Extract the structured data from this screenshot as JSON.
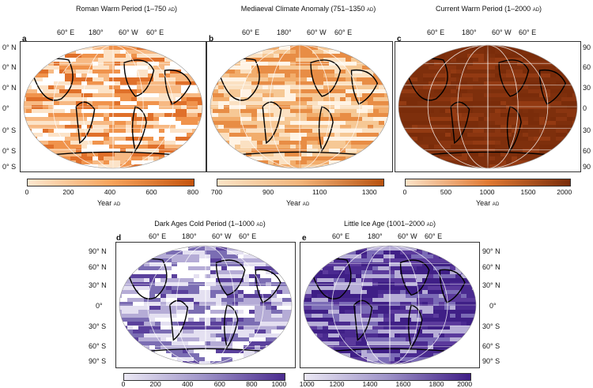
{
  "panels": [
    {
      "id": "a",
      "title": "Roman Warm Period (1–750",
      "title_unit": "AD",
      "title_close": ")",
      "colorbar": {
        "ticks": [
          "0",
          "200",
          "400",
          "600",
          "800"
        ],
        "label": "Year",
        "unit": "AD",
        "colors": [
          "#fde7cf",
          "#f8a45c",
          "#c4530d"
        ]
      },
      "lon_labels": [
        "60° E",
        "180°",
        "60° W",
        "60° E"
      ],
      "lat_labels": [
        "0° N",
        "0° N",
        "0° N",
        "0°",
        "0° S",
        "0° S",
        "0° S"
      ],
      "palette": "orange"
    },
    {
      "id": "b",
      "title": "Mediaeval Climate Anomaly (751–1350",
      "title_unit": "AD",
      "title_close": ")",
      "colorbar": {
        "ticks": [
          "700",
          "900",
          "1100",
          "1300"
        ],
        "label": "Year",
        "unit": "AD",
        "colors": [
          "#fbe3c6",
          "#f3b47a",
          "#b8520f"
        ]
      },
      "lon_labels": [
        "60° E",
        "180°",
        "60° W",
        "60° E"
      ],
      "palette": "peach"
    },
    {
      "id": "c",
      "title": "Current Warm Period (1–2000",
      "title_unit": "AD",
      "title_close": ")",
      "colorbar": {
        "ticks": [
          "0",
          "500",
          "1000",
          "1500",
          "2000"
        ],
        "label": "Year",
        "unit": "AD",
        "colors": [
          "#fde3c8",
          "#e07a34",
          "#7a2c0a"
        ]
      },
      "lon_labels": [
        "60° E",
        "180°",
        "60° W",
        "60° E"
      ],
      "lat_labels": [
        "90",
        "60",
        "30",
        "0",
        "30",
        "60",
        "90"
      ],
      "palette": "brown"
    },
    {
      "id": "d",
      "title": "Dark Ages Cold Period (1–1000",
      "title_unit": "AD",
      "title_close": ")",
      "colorbar": {
        "ticks": [
          "0",
          "200",
          "400",
          "600",
          "800",
          "1000"
        ],
        "colors": [
          "#ebe8f4",
          "#9e93c8",
          "#4b2c8f"
        ]
      },
      "lon_labels": [
        "60° E",
        "180°",
        "60° W",
        "60° E"
      ],
      "lat_labels": [
        "90° N",
        "60° N",
        "30° N",
        "0°",
        "30° S",
        "60° S",
        "90° S"
      ],
      "palette": "lavender"
    },
    {
      "id": "e",
      "title": "Little Ice Age (1001–2000",
      "title_unit": "AD",
      "title_close": ")",
      "colorbar": {
        "ticks": [
          "1000",
          "1200",
          "1400",
          "1600",
          "1800",
          "2000"
        ],
        "colors": [
          "#ebe8f4",
          "#9e93c8",
          "#3f1d86"
        ]
      },
      "lon_labels": [
        "60° E",
        "180°",
        "60° W",
        "60° E"
      ],
      "lat_labels": [
        "90° N",
        "60° N",
        "30° N",
        "0°",
        "30° S",
        "60° S",
        "90° S"
      ],
      "palette": "purple"
    }
  ]
}
